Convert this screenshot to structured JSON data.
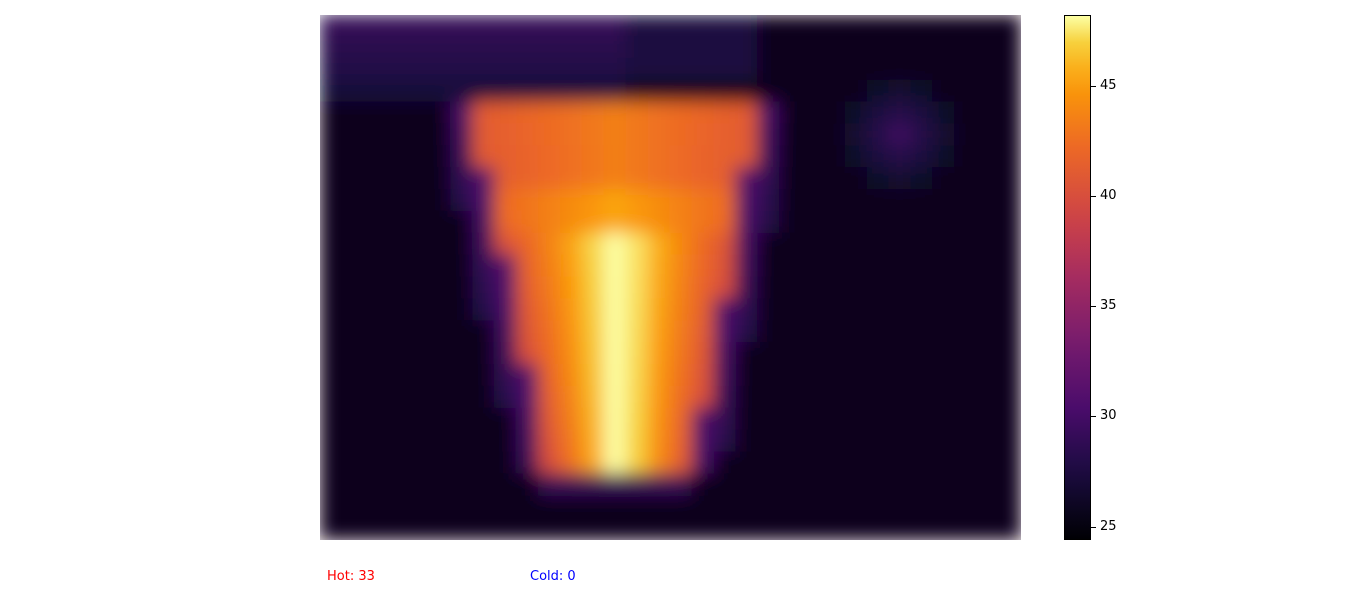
{
  "chart_data": {
    "type": "heatmap",
    "colormap": "inferno",
    "colorbar": {
      "range": [
        24.4,
        48.2
      ],
      "ticks": [
        25,
        30,
        35,
        40,
        45
      ],
      "tick_labels": [
        "25",
        "30",
        "35",
        "40",
        "45"
      ]
    },
    "grid": false,
    "axes_visible": false,
    "rows": 24,
    "cols": 32,
    "cup_region": {
      "description_rows": [
        4,
        20
      ],
      "rim_temperature": 42,
      "center_temperature": 48,
      "background_temperature": 26
    }
  },
  "readouts": {
    "hot_label": "Hot: 33",
    "hot_color": "#ff0000",
    "cold_label": "Cold: 0",
    "cold_color": "#0000ff"
  }
}
